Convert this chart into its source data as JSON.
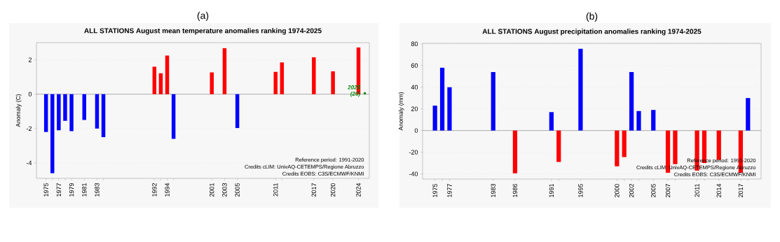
{
  "chart_data": [
    {
      "type": "bar",
      "title": "ALL STATIONS August mean temperature anomalies ranking 1974-2025",
      "ylabel": "Anomaly (C)",
      "xlim": [
        1973.5,
        2025.7
      ],
      "ylim": [
        -4.9,
        3.0
      ],
      "yticks": [
        -4,
        -2,
        0,
        2
      ],
      "xticks": [
        1975,
        {
          "value": 1976,
          "label": null
        },
        1977,
        {
          "value": 1978,
          "label": null
        },
        1979,
        1981,
        1983,
        {
          "value": 1984,
          "label": null
        },
        1992,
        {
          "value": 1993,
          "label": null
        },
        1994,
        {
          "value": 1995,
          "label": null
        },
        2001,
        2003,
        2005,
        2011,
        {
          "value": 2012,
          "label": null
        },
        2017,
        2020,
        2024
      ],
      "grid": "y",
      "ref_lines": [
        {
          "axis": "y",
          "value": 0,
          "color": "#808080"
        }
      ],
      "series": [
        {
          "x": [
            1975,
            1976,
            1977,
            1978,
            1979,
            1981,
            1983,
            1984,
            1992,
            1993,
            1994,
            1995,
            2001,
            2003,
            2005,
            2011,
            2012,
            2017,
            2020,
            2024
          ],
          "values": [
            -2.2,
            -4.6,
            -2.1,
            -1.55,
            -2.15,
            -1.5,
            -2.0,
            -2.5,
            1.6,
            1.22,
            2.25,
            -2.6,
            1.27,
            2.68,
            -1.97,
            1.3,
            1.85,
            2.15,
            1.33,
            2.72
          ],
          "colors": [
            "#0000ff",
            "#0000ff",
            "#0000ff",
            "#0000ff",
            "#0000ff",
            "#0000ff",
            "#0000ff",
            "#0000ff",
            "#ff0000",
            "#ff0000",
            "#ff0000",
            "#0000ff",
            "#ff0000",
            "#ff0000",
            "#0000ff",
            "#ff0000",
            "#ff0000",
            "#ff0000",
            "#ff0000",
            "#ff0000"
          ]
        },
        {
          "type": "scatter",
          "x": [
            2025
          ],
          "values": [
            0.05
          ],
          "color": "#008000",
          "marker": "square"
        }
      ],
      "annotations": [
        "(a)",
        "Reference period: 1991-2020",
        "Credits cLIM: UnivAQ-CETEMPS/Regione Abruzzo",
        "Credits EOBS: C3S/ECMWF/KNMI",
        {
          "text": "2025",
          "x": 2023.3,
          "y": 0.4
        },
        {
          "text": "(20)",
          "x": 2023.5,
          "y": 0.0
        }
      ]
    },
    {
      "type": "bar",
      "title": "ALL STATIONS August precipitation anomalies ranking 1974-2025",
      "ylabel": "Anomaly (mm)",
      "xlim": [
        1973.3,
        2019.8
      ],
      "ylim": [
        -44.8,
        80.5
      ],
      "yticks": [
        -40,
        -20,
        0,
        20,
        40,
        60,
        80
      ],
      "xticks": [
        1975,
        {
          "value": 1976,
          "label": null
        },
        1977,
        1983,
        1986,
        1991,
        {
          "value": 1992,
          "label": null
        },
        1995,
        2000,
        {
          "value": 2001,
          "label": null
        },
        2002,
        {
          "value": 2003,
          "label": null
        },
        2005,
        2007,
        {
          "value": 2008,
          "label": null
        },
        2011,
        {
          "value": 2012,
          "label": null
        },
        2014,
        2017,
        {
          "value": 2018,
          "label": null
        }
      ],
      "grid": "y",
      "ref_lines": [
        {
          "axis": "y",
          "value": 0,
          "color": "#808080"
        }
      ],
      "series": [
        {
          "x": [
            1975,
            1976,
            1977,
            1983,
            1986,
            1991,
            1992,
            1995,
            2000,
            2001,
            2002,
            2003,
            2005,
            2007,
            2008,
            2011,
            2012,
            2014,
            2017,
            2018
          ],
          "values": [
            23,
            58,
            40,
            54,
            -39.5,
            17,
            -29,
            75.5,
            -33,
            -24.5,
            54,
            18,
            19,
            -39,
            -31,
            -37,
            -30,
            -27,
            -39,
            30
          ],
          "colors": [
            "#0000ff",
            "#0000ff",
            "#0000ff",
            "#0000ff",
            "#ff0000",
            "#0000ff",
            "#ff0000",
            "#0000ff",
            "#ff0000",
            "#ff0000",
            "#0000ff",
            "#0000ff",
            "#0000ff",
            "#ff0000",
            "#ff0000",
            "#ff0000",
            "#ff0000",
            "#ff0000",
            "#ff0000",
            "#0000ff"
          ]
        }
      ],
      "annotations": [
        "(b)",
        "Reference period: 1991-2020",
        "Credits cLIM: UnivAQ-CETEMPS/Regione Abruzzo",
        "Credits EOBS: C3S/ECMWF/KNMI"
      ]
    }
  ]
}
